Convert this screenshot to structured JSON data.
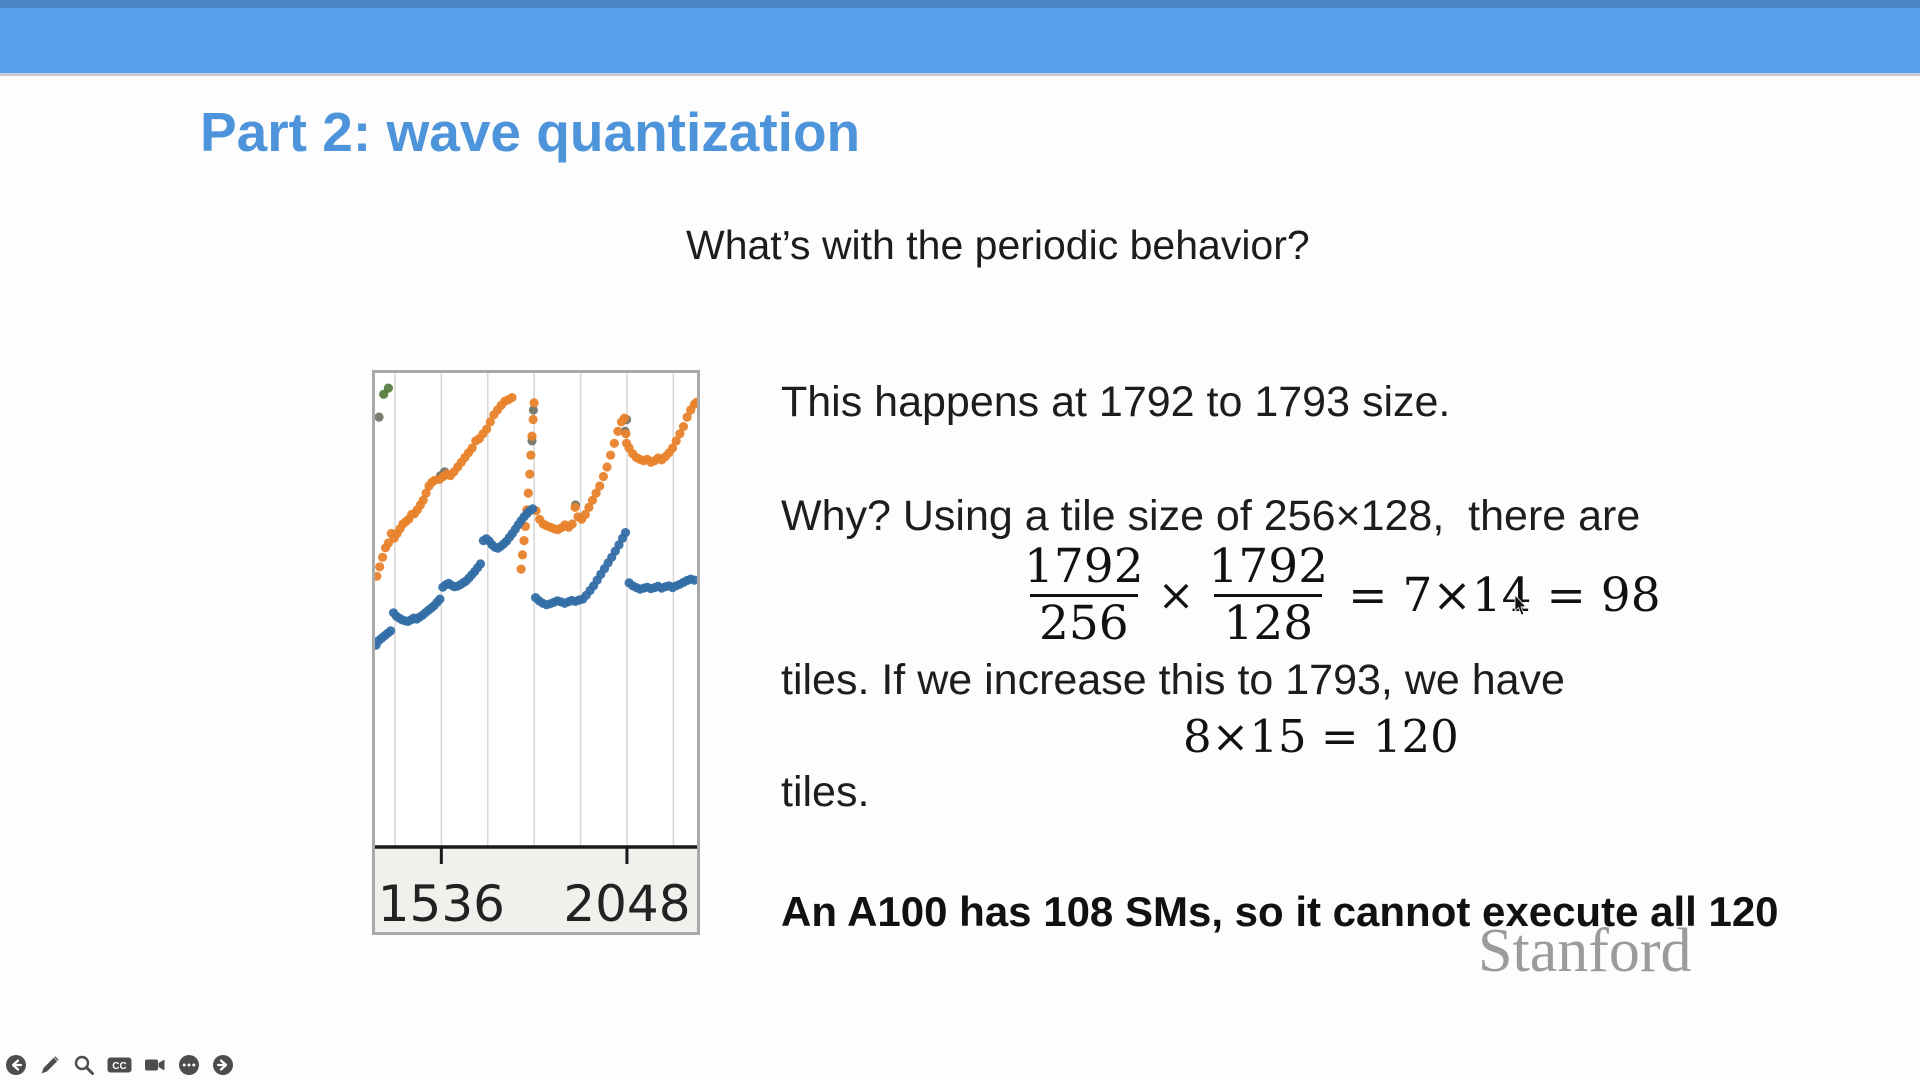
{
  "title": "Part 2: wave quantization",
  "subtitle": "What’s with the periodic behavior?",
  "body": {
    "line1": "This happens at 1792 to 1793 size.",
    "line2": "Why? Using a tile size of 256×128,  there are",
    "line3": "tiles. If we increase this to 1793, we have",
    "line4": "tiles.",
    "bold_line": "An A100 has 108 SMs, so it cannot execute all 120"
  },
  "equation": {
    "frac1": {
      "num": "1792",
      "den": "256"
    },
    "operator": "×",
    "frac2": {
      "num": "1792",
      "den": "128"
    },
    "result": "= 7×14 = 98"
  },
  "equation2": "8×15 = 120",
  "watermark": "Stanford",
  "player": {
    "cc_label": "CC",
    "icons": [
      "back",
      "annotate",
      "zoom",
      "captions",
      "camera",
      "more",
      "next"
    ]
  },
  "colors": {
    "top_bar": "#57a1ef",
    "title_blue": "#4d94da",
    "axis": "#1a1a1a",
    "grid": "#d9d9d9",
    "chart_border": "#a9a9a9",
    "label_strip": "#f2f0ed",
    "icon_gray": "#4d4d4d",
    "watermark_gray": "#9b9b9b"
  },
  "chart_data": {
    "type": "scatter",
    "title": "",
    "xlabel": "",
    "ylabel": "",
    "xlim": [
      1353,
      2244
    ],
    "ylim": [
      0,
      100
    ],
    "grid_on": true,
    "grid_x": [
      1408,
      1536,
      1664,
      1792,
      1920,
      2048,
      2176
    ],
    "ticks": [
      {
        "value": 1536,
        "label": "1536"
      },
      {
        "value": 2048,
        "label": "2048"
      }
    ],
    "point_radius": 4.6,
    "series": [
      {
        "name": "green",
        "color": "#567c3f",
        "points": [
          [
            1377,
            95.3
          ],
          [
            1390,
            96.6
          ]
        ]
      },
      {
        "name": "olive",
        "color": "#73776a",
        "points": [
          [
            1364,
            90.5
          ],
          [
            1534,
            78.2
          ],
          [
            1545,
            79.0
          ],
          [
            1786,
            85.5
          ],
          [
            1790,
            92.0
          ],
          [
            2043,
            87.5
          ],
          [
            2047,
            90.0
          ],
          [
            1906,
            72.0
          ]
        ]
      },
      {
        "name": "orange",
        "color": "#e8822b",
        "points": [
          [
            1358,
            57.0
          ],
          [
            1366,
            59.0
          ],
          [
            1374,
            61.0
          ],
          [
            1382,
            63.0
          ],
          [
            1390,
            64.0
          ],
          [
            1398,
            66.0
          ],
          [
            1406,
            65.0
          ],
          [
            1414,
            66.0
          ],
          [
            1422,
            67.0
          ],
          [
            1430,
            68.0
          ],
          [
            1438,
            68.5
          ],
          [
            1446,
            69.0
          ],
          [
            1454,
            70.0
          ],
          [
            1462,
            70.2
          ],
          [
            1470,
            71.0
          ],
          [
            1478,
            72.0
          ],
          [
            1486,
            73.0
          ],
          [
            1494,
            74.5
          ],
          [
            1502,
            76.0
          ],
          [
            1510,
            76.8
          ],
          [
            1518,
            77.2
          ],
          [
            1531,
            77.4
          ],
          [
            1541,
            78.0
          ],
          [
            1551,
            78.5
          ],
          [
            1561,
            78.2
          ],
          [
            1571,
            79.0
          ],
          [
            1581,
            80.0
          ],
          [
            1591,
            81.0
          ],
          [
            1601,
            82.0
          ],
          [
            1611,
            83.0
          ],
          [
            1621,
            84.0
          ],
          [
            1631,
            85.5
          ],
          [
            1641,
            86.0
          ],
          [
            1651,
            87.0
          ],
          [
            1661,
            88.0
          ],
          [
            1671,
            89.5
          ],
          [
            1681,
            91.0
          ],
          [
            1691,
            92.0
          ],
          [
            1701,
            93.0
          ],
          [
            1711,
            93.8
          ],
          [
            1721,
            94.2
          ],
          [
            1731,
            94.6
          ],
          [
            1756,
            58.5
          ],
          [
            1760,
            61.5
          ],
          [
            1764,
            64.5
          ],
          [
            1768,
            67.5
          ],
          [
            1772,
            71.0
          ],
          [
            1776,
            74.5
          ],
          [
            1780,
            78.5
          ],
          [
            1783,
            82.5
          ],
          [
            1786,
            86.5
          ],
          [
            1789,
            90.0
          ],
          [
            1792,
            93.5
          ],
          [
            1797,
            70.8
          ],
          [
            1807,
            69.0
          ],
          [
            1817,
            68.0
          ],
          [
            1827,
            67.6
          ],
          [
            1837,
            67.3
          ],
          [
            1847,
            67.0
          ],
          [
            1857,
            66.8
          ],
          [
            1867,
            67.2
          ],
          [
            1877,
            67.8
          ],
          [
            1887,
            67.3
          ],
          [
            1897,
            68.0
          ],
          [
            1905,
            71.5
          ],
          [
            1913,
            69.5
          ],
          [
            1923,
            69.0
          ],
          [
            1933,
            70.0
          ],
          [
            1943,
            71.5
          ],
          [
            1953,
            73.0
          ],
          [
            1963,
            74.5
          ],
          [
            1973,
            76.0
          ],
          [
            1983,
            78.0
          ],
          [
            1993,
            80.0
          ],
          [
            2003,
            82.5
          ],
          [
            2013,
            85.0
          ],
          [
            2023,
            87.5
          ],
          [
            2033,
            89.5
          ],
          [
            2041,
            90.3
          ],
          [
            2045,
            87.0
          ],
          [
            2047,
            85.0
          ],
          [
            2054,
            84.0
          ],
          [
            2064,
            82.8
          ],
          [
            2074,
            82.0
          ],
          [
            2084,
            81.6
          ],
          [
            2094,
            81.3
          ],
          [
            2104,
            81.6
          ],
          [
            2114,
            81.0
          ],
          [
            2124,
            81.3
          ],
          [
            2134,
            81.9
          ],
          [
            2144,
            81.5
          ],
          [
            2154,
            82.2
          ],
          [
            2164,
            83.0
          ],
          [
            2174,
            84.0
          ],
          [
            2184,
            85.5
          ],
          [
            2194,
            87.0
          ],
          [
            2204,
            88.5
          ],
          [
            2214,
            90.5
          ],
          [
            2224,
            92.0
          ],
          [
            2234,
            93.2
          ],
          [
            2240,
            93.6
          ]
        ]
      },
      {
        "name": "blue",
        "color": "#346ea6",
        "points": [
          [
            1356,
            42.5
          ],
          [
            1364,
            43.5
          ],
          [
            1372,
            44.0
          ],
          [
            1380,
            44.5
          ],
          [
            1388,
            45.0
          ],
          [
            1396,
            45.5
          ],
          [
            1404,
            49.3
          ],
          [
            1412,
            48.6
          ],
          [
            1420,
            48.2
          ],
          [
            1428,
            47.8
          ],
          [
            1436,
            47.6
          ],
          [
            1444,
            47.5
          ],
          [
            1452,
            47.8
          ],
          [
            1460,
            48.2
          ],
          [
            1468,
            48.0
          ],
          [
            1476,
            48.4
          ],
          [
            1484,
            48.8
          ],
          [
            1492,
            49.3
          ],
          [
            1500,
            49.8
          ],
          [
            1508,
            50.3
          ],
          [
            1516,
            50.8
          ],
          [
            1524,
            51.5
          ],
          [
            1532,
            52.2
          ],
          [
            1540,
            54.7
          ],
          [
            1548,
            55.2
          ],
          [
            1556,
            55.5
          ],
          [
            1564,
            55.1
          ],
          [
            1572,
            54.8
          ],
          [
            1580,
            54.9
          ],
          [
            1588,
            55.2
          ],
          [
            1596,
            55.6
          ],
          [
            1604,
            56.0
          ],
          [
            1612,
            56.6
          ],
          [
            1620,
            57.3
          ],
          [
            1628,
            58.0
          ],
          [
            1636,
            58.8
          ],
          [
            1644,
            59.6
          ],
          [
            1652,
            64.5
          ],
          [
            1660,
            64.9
          ],
          [
            1668,
            64.4
          ],
          [
            1676,
            63.6
          ],
          [
            1684,
            63.1
          ],
          [
            1692,
            62.9
          ],
          [
            1700,
            63.3
          ],
          [
            1708,
            63.8
          ],
          [
            1716,
            64.4
          ],
          [
            1724,
            65.2
          ],
          [
            1732,
            66.0
          ],
          [
            1740,
            66.9
          ],
          [
            1748,
            67.8
          ],
          [
            1756,
            68.7
          ],
          [
            1764,
            69.5
          ],
          [
            1772,
            70.2
          ],
          [
            1780,
            70.8
          ],
          [
            1788,
            71.2
          ],
          [
            1796,
            52.5
          ],
          [
            1806,
            51.8
          ],
          [
            1816,
            51.3
          ],
          [
            1826,
            51.0
          ],
          [
            1836,
            51.2
          ],
          [
            1846,
            51.5
          ],
          [
            1856,
            51.8
          ],
          [
            1866,
            51.6
          ],
          [
            1876,
            51.3
          ],
          [
            1886,
            51.6
          ],
          [
            1896,
            51.9
          ],
          [
            1906,
            51.7
          ],
          [
            1916,
            52.0
          ],
          [
            1926,
            52.2
          ],
          [
            1936,
            53.0
          ],
          [
            1946,
            54.0
          ],
          [
            1956,
            55.0
          ],
          [
            1966,
            56.2
          ],
          [
            1976,
            57.4
          ],
          [
            1986,
            58.6
          ],
          [
            1996,
            59.8
          ],
          [
            2006,
            61.0
          ],
          [
            2016,
            62.3
          ],
          [
            2026,
            63.6
          ],
          [
            2036,
            65.0
          ],
          [
            2044,
            66.2
          ],
          [
            2054,
            55.6
          ],
          [
            2064,
            55.0
          ],
          [
            2074,
            54.6
          ],
          [
            2084,
            54.3
          ],
          [
            2094,
            54.5
          ],
          [
            2104,
            54.7
          ],
          [
            2114,
            54.4
          ],
          [
            2124,
            54.6
          ],
          [
            2134,
            54.9
          ],
          [
            2144,
            54.5
          ],
          [
            2154,
            54.8
          ],
          [
            2164,
            55.0
          ],
          [
            2174,
            54.6
          ],
          [
            2184,
            55.0
          ],
          [
            2194,
            55.3
          ],
          [
            2204,
            55.7
          ],
          [
            2214,
            56.1
          ],
          [
            2224,
            56.4
          ],
          [
            2234,
            56.2
          ]
        ]
      }
    ]
  }
}
